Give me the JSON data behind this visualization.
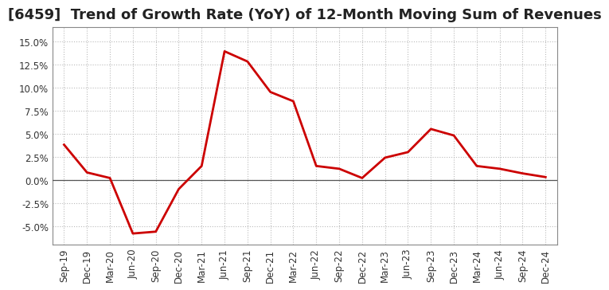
{
  "title": "[6459]  Trend of Growth Rate (YoY) of 12-Month Moving Sum of Revenues",
  "x_labels": [
    "Sep-19",
    "Dec-19",
    "Mar-20",
    "Jun-20",
    "Sep-20",
    "Dec-20",
    "Mar-21",
    "Jun-21",
    "Sep-21",
    "Dec-21",
    "Mar-22",
    "Jun-22",
    "Sep-22",
    "Dec-22",
    "Mar-23",
    "Jun-23",
    "Sep-23",
    "Dec-23",
    "Mar-24",
    "Jun-24",
    "Sep-24",
    "Dec-24"
  ],
  "y_values": [
    3.8,
    0.8,
    0.2,
    -5.8,
    -5.6,
    -1.0,
    1.5,
    13.9,
    12.8,
    9.5,
    8.5,
    1.5,
    1.2,
    0.2,
    2.4,
    3.0,
    5.5,
    4.8,
    1.5,
    1.2,
    0.7,
    0.3
  ],
  "ylim": [
    -7.0,
    16.5
  ],
  "yticks": [
    -5.0,
    -2.5,
    0.0,
    2.5,
    5.0,
    7.5,
    10.0,
    12.5,
    15.0
  ],
  "line_color": "#cc0000",
  "line_width": 2.0,
  "background_color": "#ffffff",
  "plot_bg_color": "#ffffff",
  "grid_color": "#bbbbbb",
  "title_fontsize": 13,
  "tick_fontsize": 8.5,
  "spine_color": "#888888"
}
